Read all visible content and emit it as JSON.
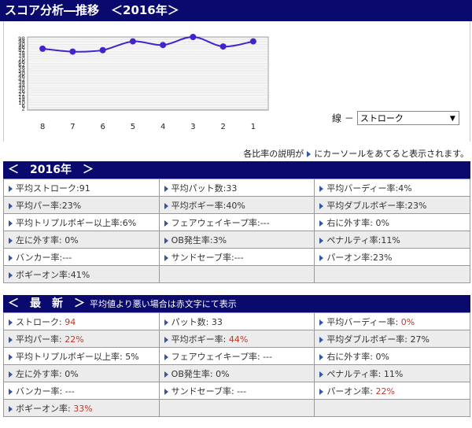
{
  "title": "スコア分析―推移　＜2016年＞",
  "chart_data": {
    "type": "line",
    "categories": [
      "8",
      "7",
      "6",
      "5",
      "4",
      "3",
      "2",
      "1"
    ],
    "series": [
      {
        "values": [
          84,
          80,
          82,
          94,
          89,
          100,
          87,
          94
        ]
      }
    ],
    "y_tick_labels": [
      "98",
      "96",
      "94",
      "92",
      "90",
      "88",
      "86",
      "84",
      "82",
      "80",
      "78",
      "76",
      "74",
      "72",
      "70",
      "68",
      "66",
      "64",
      "62",
      "60",
      "58",
      "56",
      "54",
      "52",
      "50",
      "48",
      "46",
      "44",
      "42",
      "40",
      "38",
      "36",
      "34",
      "32",
      "30",
      "28",
      "26",
      "24",
      "22",
      "20",
      "18",
      "16",
      "14",
      "12",
      "10",
      "8",
      "6",
      "4",
      "2",
      "1"
    ],
    "ylim": [
      0,
      100
    ],
    "grid": true,
    "line_color": "#4422cc"
  },
  "line_selector": {
    "label": "線 －",
    "value": "ストローク"
  },
  "hint": {
    "before": "各比率の説明が",
    "after": "にカーソールをあてると表示されます。"
  },
  "section1": {
    "header": "＜　2016年　＞",
    "rows": [
      [
        "平均ストローク:91",
        "平均パット数:33",
        "平均バーディー率:4%"
      ],
      [
        "平均パー率:23%",
        "平均ボギー率:40%",
        "平均ダブルボギー率:23%"
      ],
      [
        "平均トリプルボギー以上率:6%",
        "フェアウェイキープ率:---",
        "右に外す率: 0%"
      ],
      [
        "左に外す率: 0%",
        "OB発生率:3%",
        "ペナルティ率:11%"
      ],
      [
        "バンカー率:---",
        "サンドセーブ率:---",
        "パーオン率:23%"
      ],
      [
        "ボギーオン率:41%",
        "",
        ""
      ]
    ]
  },
  "section2": {
    "header": "＜　最　新　＞",
    "note": "平均値より悪い場合は赤文字にて表示",
    "rows": [
      [
        {
          "label": "ストローク: ",
          "value": "94",
          "bad": true
        },
        {
          "label": "パット数: ",
          "value": "33",
          "bad": false
        },
        {
          "label": "平均バーディー率: ",
          "value": "0%",
          "bad": true
        }
      ],
      [
        {
          "label": "平均パー率: ",
          "value": "22%",
          "bad": true
        },
        {
          "label": "平均ボギー率: ",
          "value": "44%",
          "bad": true
        },
        {
          "label": "平均ダブルボギー率: ",
          "value": "27%",
          "bad": false
        }
      ],
      [
        {
          "label": "平均トリプルボギー以上率: ",
          "value": "5%",
          "bad": false
        },
        {
          "label": "フェアウェイキープ率: ",
          "value": "---",
          "bad": false
        },
        {
          "label": "右に外す率: ",
          "value": "0%",
          "bad": false
        }
      ],
      [
        {
          "label": "左に外す率: ",
          "value": "0%",
          "bad": false
        },
        {
          "label": "OB発生率: ",
          "value": "0%",
          "bad": false
        },
        {
          "label": "ペナルティ率: ",
          "value": "11%",
          "bad": false
        }
      ],
      [
        {
          "label": "バンカー率: ",
          "value": "---",
          "bad": false
        },
        {
          "label": "サンドセーブ率: ",
          "value": "---",
          "bad": false
        },
        {
          "label": "パーオン率: ",
          "value": "22%",
          "bad": true
        }
      ],
      [
        {
          "label": "ボギーオン率: ",
          "value": "33%",
          "bad": true
        },
        null,
        null
      ]
    ]
  }
}
